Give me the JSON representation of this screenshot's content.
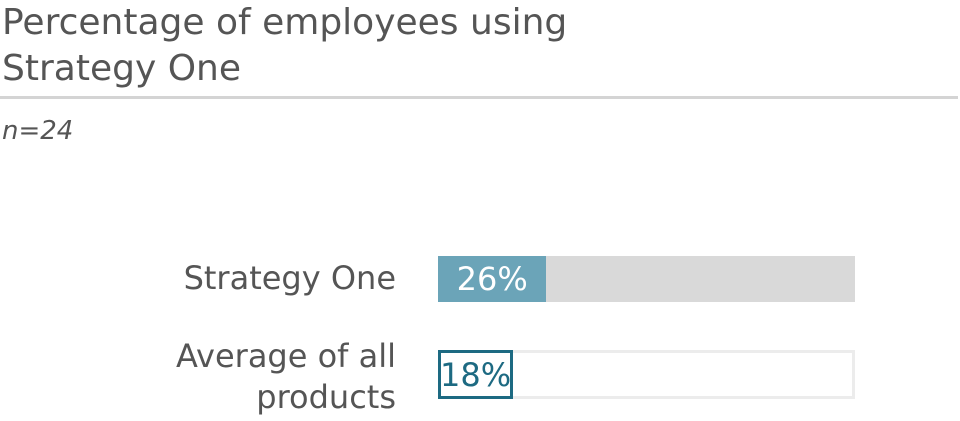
{
  "chart_data": {
    "type": "bar",
    "orientation": "horizontal",
    "title": "Percentage of employees using Strategy One",
    "subtitle": "n=24",
    "categories": [
      "Strategy One",
      "Average of all products"
    ],
    "values": [
      26,
      18
    ],
    "value_labels": [
      "26%",
      "18%"
    ],
    "colors": [
      "#6ba4b8",
      "#1d6a82"
    ],
    "xlim": [
      0,
      100
    ]
  }
}
